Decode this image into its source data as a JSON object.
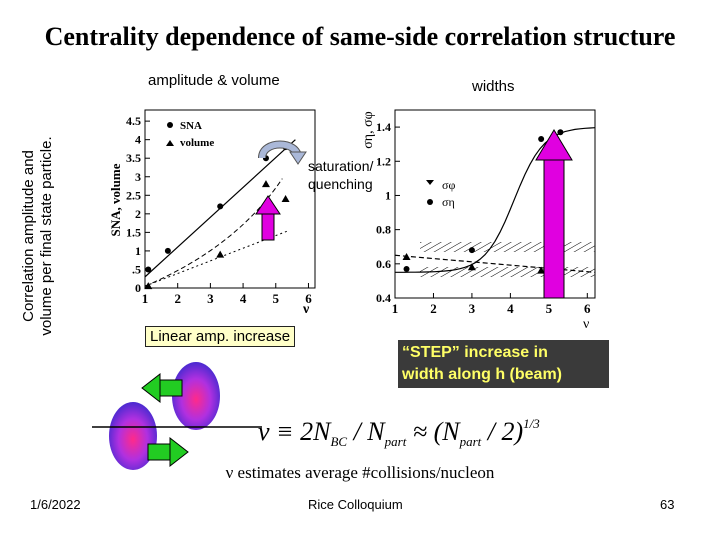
{
  "slide": {
    "title": "Centrality dependence of same-side correlation structure",
    "subtitle_left": "amplitude & volume",
    "subtitle_right": "widths",
    "outer_ylabel_line1": "Correlation amplitude and",
    "outer_ylabel_line2": "volume per final state particle.",
    "saturation_line1": "saturation/",
    "saturation_line2": "quenching",
    "linear_label": "Linear amp. increase",
    "step_line1": "“STEP” increase in",
    "step_line2": "width along h (beam)",
    "nu_note": "ν estimates average #collisions/nucleon",
    "formula": {
      "lhs": "ν ≡ 2N",
      "sub1": "BC",
      "mid": " / N",
      "sub2": "part",
      "approx": " ≈ (N",
      "sub3": "part",
      "rest": " / 2)",
      "sup": "1/3"
    },
    "date": "1/6/2022",
    "venue": "Rice Colloquium",
    "page_number": "63",
    "colors": {
      "arrow_magenta": "#e000e0",
      "arrow_green": "#22cc22",
      "box_yellow": "#ffffc8",
      "step_text": "#ffff66"
    }
  },
  "chart_data": [
    {
      "type": "line",
      "ylabel": "SNA, volume",
      "xlabel": "ν",
      "xlim": [
        1,
        6.2
      ],
      "ylim": [
        0,
        4.8
      ],
      "x_ticks": [
        "1",
        "2",
        "3",
        "4",
        "5",
        "6"
      ],
      "y_ticks": [
        "0",
        ".5",
        "1",
        "1.5",
        "2",
        "2.5",
        "3",
        "3.5",
        "4",
        "4.5"
      ],
      "legend": [
        "SNA",
        "volume"
      ],
      "series": [
        {
          "name": "SNA",
          "marker": "circle",
          "x": [
            1.1,
            1.7,
            3.3,
            4.7,
            5.3
          ],
          "y": [
            0.5,
            1.0,
            2.2,
            3.5,
            3.8
          ]
        },
        {
          "name": "volume",
          "marker": "triangle",
          "x": [
            1.1,
            3.3,
            4.7,
            5.3
          ],
          "y": [
            0.05,
            0.9,
            2.8,
            2.4
          ]
        }
      ],
      "fit_lines": [
        {
          "style": "solid",
          "x": [
            1.0,
            5.6
          ],
          "y": [
            0.3,
            4.0
          ]
        },
        {
          "style": "dotted",
          "x": [
            1.0,
            5.4
          ],
          "y": [
            0.05,
            1.55
          ]
        }
      ]
    },
    {
      "type": "line",
      "ylabel": "ση, σφ",
      "xlabel": "ν",
      "xlim": [
        1,
        6.2
      ],
      "ylim": [
        0.4,
        1.5
      ],
      "x_ticks": [
        "1",
        "2",
        "3",
        "4",
        "5",
        "6"
      ],
      "y_ticks": [
        "0.4",
        "0.6",
        "0.8",
        "1",
        "1.2",
        "1.4"
      ],
      "legend": [
        "σφ",
        "ση"
      ],
      "series": [
        {
          "name": "σφ",
          "marker": "triangle",
          "x": [
            1.3,
            3.0,
            4.8,
            5.3
          ],
          "y": [
            0.64,
            0.58,
            0.56,
            0.56
          ]
        },
        {
          "name": "ση",
          "marker": "circle",
          "x": [
            1.3,
            3.0,
            4.8,
            5.3
          ],
          "y": [
            0.57,
            0.68,
            1.33,
            1.37
          ]
        }
      ],
      "fit_lines": [
        {
          "style": "solid",
          "x": [
            1.0,
            6.2
          ],
          "y": [
            0.55,
            1.4
          ]
        },
        {
          "style": "dashed",
          "x": [
            1.0,
            6.2
          ],
          "y": [
            0.65,
            0.55
          ]
        }
      ]
    }
  ]
}
